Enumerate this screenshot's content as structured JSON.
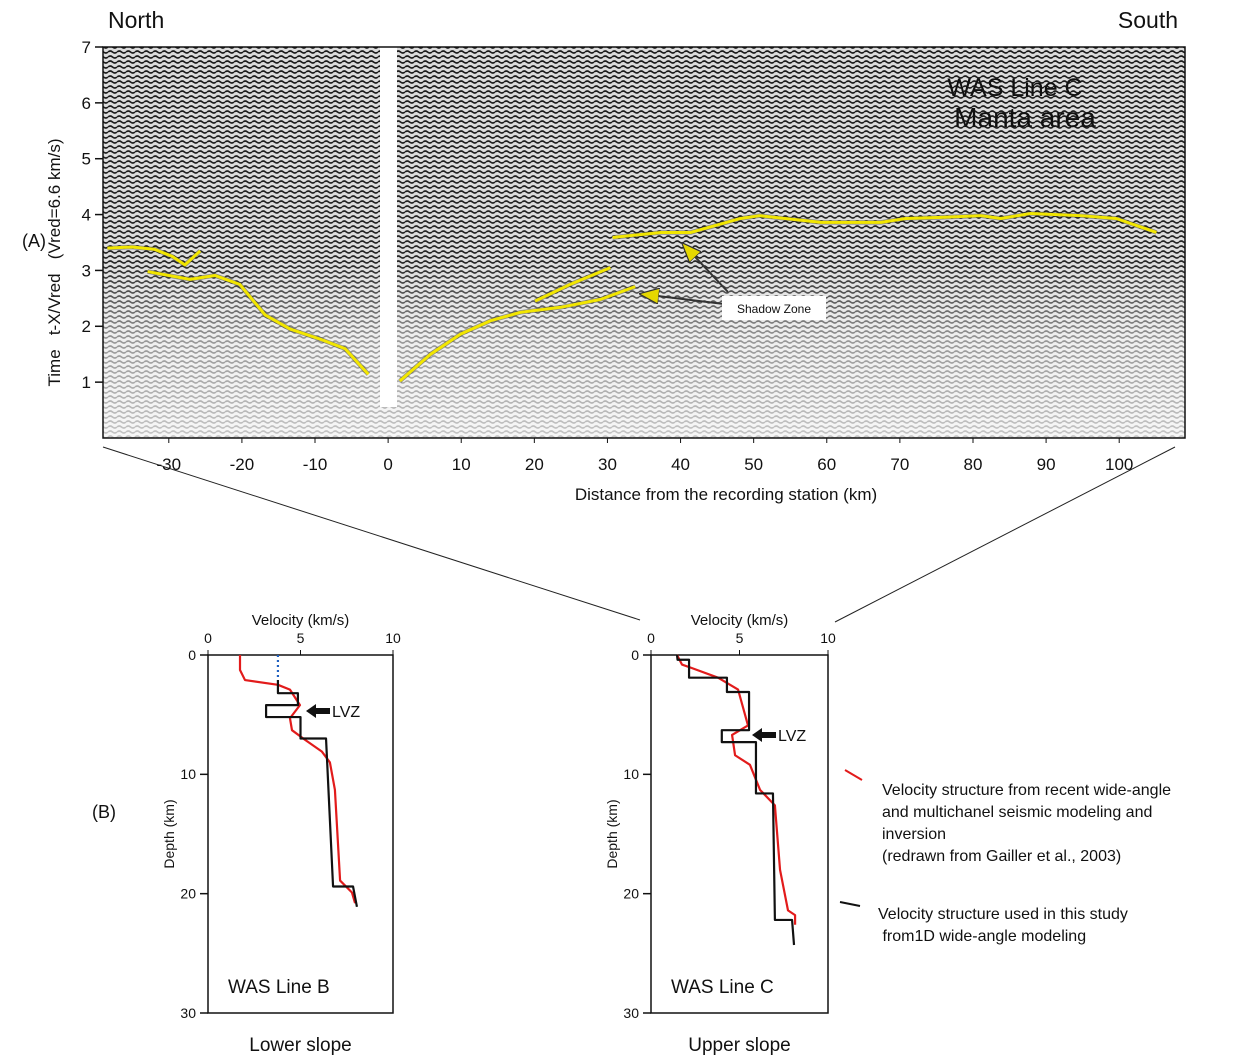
{
  "labels": {
    "panel_a": "(A)",
    "panel_b": "(B)"
  },
  "chart_data": [
    {
      "type": "line",
      "title": "WAS Line C",
      "subtitle": "Manta area",
      "annotations": [
        "North",
        "South",
        "Shadow Zone"
      ],
      "x_label": "Distance from the recording station (km)",
      "y_label": "Time   t-X/Vred   (Vred=6.6 km/s)",
      "xlim": [
        -39,
        109
      ],
      "ylim": [
        0,
        7
      ],
      "xticks": [
        -30,
        -20,
        -10,
        0,
        10,
        20,
        30,
        40,
        50,
        60,
        70,
        80,
        90,
        100
      ],
      "yticks": [
        1,
        2,
        3,
        4,
        5,
        6,
        7
      ],
      "series": [
        {
          "color": "#f2e600",
          "x": [
            -38.4,
            -35,
            -32,
            -29.5,
            -27.8,
            -25.7
          ],
          "values": [
            3.4,
            3.42,
            3.38,
            3.25,
            3.1,
            3.35
          ]
        },
        {
          "color": "#f2e600",
          "x": [
            -32.9,
            -27.1,
            -23.7,
            -20.3,
            -16.8,
            -13.4,
            -9.3,
            -5.9,
            -2.7
          ],
          "values": [
            2.98,
            2.84,
            2.91,
            2.75,
            2.2,
            1.95,
            1.77,
            1.6,
            1.14
          ]
        },
        {
          "color": "#f2e600",
          "x": [
            1.6,
            5.8,
            9.9,
            14,
            18.1,
            23.6,
            29,
            33.8
          ],
          "values": [
            1.02,
            1.5,
            1.86,
            2.1,
            2.25,
            2.34,
            2.48,
            2.71
          ]
        },
        {
          "color": "#f2e600",
          "x": [
            20.1,
            24.9,
            30.4
          ],
          "values": [
            2.45,
            2.75,
            3.05
          ]
        },
        {
          "color": "#f2e600",
          "x": [
            30.7,
            37.3,
            41.4,
            48.2,
            50.8,
            59.2,
            67.4,
            70.8,
            75.6,
            81.1,
            83.8,
            87.9,
            94.8,
            99.6,
            105.1
          ],
          "values": [
            3.59,
            3.68,
            3.68,
            3.93,
            3.98,
            3.86,
            3.86,
            3.93,
            3.95,
            3.98,
            3.93,
            4.02,
            3.98,
            3.93,
            3.68
          ]
        }
      ]
    },
    {
      "type": "line",
      "title": "WAS Line B",
      "subtitle": "Lower slope",
      "annotations": [
        "LVZ"
      ],
      "x_label": "Velocity (km/s)",
      "y_label": "Depth (km)",
      "xlim": [
        0,
        10
      ],
      "ylim": [
        0,
        30
      ],
      "y_inverted": true,
      "xticks": [
        0,
        5,
        10
      ],
      "yticks": [
        0,
        10,
        20,
        30
      ],
      "series": [
        {
          "color": "#e21b1b",
          "x": [
            1.73,
            1.73,
            2.0,
            3.78,
            4.43,
            4.97,
            4.43,
            4.54,
            5.24,
            6.16,
            6.59,
            6.86,
            7.14,
            7.78,
            7.95
          ],
          "values": [
            0,
            1.26,
            2.1,
            2.5,
            2.9,
            4.2,
            5.3,
            6.3,
            7.1,
            8.1,
            9.0,
            11.3,
            18.9,
            19.9,
            20.8
          ]
        },
        {
          "color": "#111111",
          "x": [
            3.78,
            3.78,
            4.86,
            4.86,
            3.14,
            3.14,
            5.0,
            5.0,
            6.38,
            6.76,
            7.84,
            8.05
          ],
          "values": [
            2.1,
            3.2,
            3.2,
            4.2,
            4.2,
            5.2,
            5.2,
            7.0,
            7.0,
            19.4,
            19.4,
            21.1
          ]
        },
        {
          "color": "#1f5fbf",
          "dashed": true,
          "x": [
            3.78,
            3.78
          ],
          "values": [
            0,
            2.1
          ]
        }
      ]
    },
    {
      "type": "line",
      "title": "WAS Line C",
      "subtitle": "Upper slope",
      "annotations": [
        "LVZ"
      ],
      "x_label": "Velocity (km/s)",
      "y_label": "Depth (km)",
      "xlim": [
        0,
        10
      ],
      "ylim": [
        0,
        30
      ],
      "y_inverted": true,
      "xticks": [
        0,
        5,
        10
      ],
      "yticks": [
        0,
        10,
        20,
        30
      ],
      "series": [
        {
          "name": "Velocity structure from recent wide-angle\nand multichanel seismic modeling and\ninversion\n(redrawn from Gailler et al., 2003)",
          "color": "#e21b1b",
          "x": [
            1.47,
            1.75,
            2.32,
            3.79,
            4.92,
            5.48,
            4.58,
            4.75,
            5.59,
            6.16,
            7.0,
            7.29,
            7.74,
            8.14,
            8.14
          ],
          "values": [
            0,
            0.8,
            1.1,
            1.9,
            2.9,
            5.9,
            6.7,
            8.4,
            9.2,
            11.3,
            12.6,
            18.0,
            21.4,
            21.8,
            22.6
          ]
        },
        {
          "name": "Velocity structure used in this study\n from1D wide-angle modeling",
          "color": "#111111",
          "x": [
            1.47,
            1.5,
            2.15,
            2.15,
            4.29,
            4.29,
            5.54,
            5.54,
            4.0,
            4.0,
            5.93,
            5.93,
            6.89,
            7.0,
            7.97,
            8.08
          ],
          "values": [
            0,
            0.4,
            0.4,
            1.9,
            1.9,
            3.1,
            3.1,
            6.3,
            6.3,
            7.3,
            7.3,
            11.6,
            11.6,
            22.2,
            22.2,
            24.3
          ]
        }
      ]
    }
  ]
}
